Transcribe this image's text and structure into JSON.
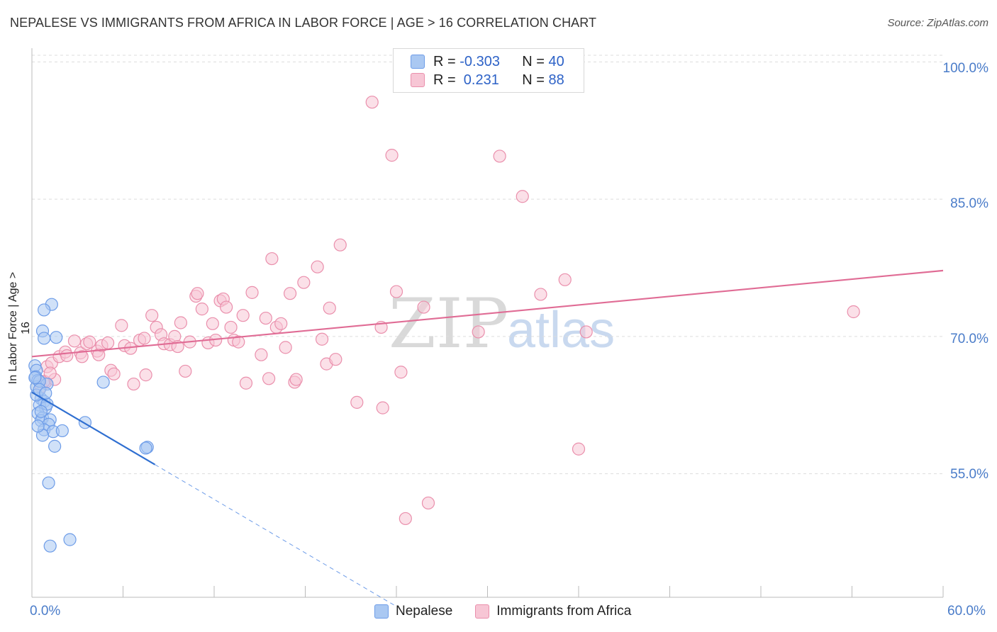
{
  "chart_data": {
    "type": "scatter",
    "title": "NEPALESE VS IMMIGRANTS FROM AFRICA IN LABOR FORCE | AGE > 16 CORRELATION CHART",
    "source": "Source: ZipAtlas.com",
    "watermark": "ZIPatlas",
    "xlabel": "",
    "ylabel": "In Labor Force | Age > 16",
    "xlim": [
      0,
      60
    ],
    "ylim": [
      41.5,
      101.5
    ],
    "x_tick_labels": [
      "0.0%",
      "60.0%"
    ],
    "y_ticks": [
      55,
      70,
      85,
      100
    ],
    "y_tick_labels": [
      "55.0%",
      "70.0%",
      "85.0%",
      "100.0%"
    ],
    "legend": {
      "rows": [
        {
          "r_label": "R = ",
          "r_value": "-0.303",
          "n_label": "N = ",
          "n_value": "40"
        },
        {
          "r_label": "R = ",
          "r_value": " 0.231",
          "n_label": "N = ",
          "n_value": "88"
        }
      ]
    },
    "series": [
      {
        "name": "Nepalese",
        "color": "#6d9ce8",
        "fill": "#aac8f2",
        "trend": {
          "x0": 0.0,
          "y0": 63.9,
          "x1": 8.1,
          "y1": 56.0,
          "dash_to_x": 24.0,
          "dash_to_y": 40.5
        },
        "points": [
          [
            0.2,
            66.8
          ],
          [
            0.3,
            66.3
          ],
          [
            0.25,
            65.6
          ],
          [
            0.4,
            65.2
          ],
          [
            0.3,
            64.5
          ],
          [
            0.6,
            63.2
          ],
          [
            0.8,
            62.9
          ],
          [
            0.5,
            62.5
          ],
          [
            0.9,
            62.2
          ],
          [
            0.4,
            61.6
          ],
          [
            0.7,
            61.1
          ],
          [
            0.6,
            60.8
          ],
          [
            1.2,
            60.9
          ],
          [
            1.1,
            60.4
          ],
          [
            0.8,
            59.8
          ],
          [
            1.4,
            59.6
          ],
          [
            0.7,
            59.2
          ],
          [
            2.0,
            59.7
          ],
          [
            1.5,
            58.0
          ],
          [
            3.5,
            60.6
          ],
          [
            7.6,
            57.9
          ],
          [
            7.5,
            57.8
          ],
          [
            1.3,
            73.5
          ],
          [
            0.8,
            72.9
          ],
          [
            0.7,
            70.6
          ],
          [
            0.8,
            69.8
          ],
          [
            1.6,
            69.9
          ],
          [
            4.7,
            65.0
          ],
          [
            1.0,
            64.8
          ],
          [
            0.5,
            65.1
          ],
          [
            1.1,
            54.0
          ],
          [
            2.5,
            47.8
          ],
          [
            1.2,
            47.1
          ],
          [
            0.3,
            63.6
          ],
          [
            0.5,
            64.2
          ],
          [
            1.0,
            62.6
          ],
          [
            0.6,
            61.8
          ],
          [
            0.2,
            65.5
          ],
          [
            0.9,
            63.8
          ],
          [
            0.4,
            60.2
          ]
        ]
      },
      {
        "name": "Immigrants from Africa",
        "color": "#ea8fac",
        "fill": "#f7c6d5",
        "trend": {
          "x0": 0.0,
          "y0": 67.8,
          "x1": 60.0,
          "y1": 77.2
        },
        "points": [
          [
            0.6,
            64.5
          ],
          [
            0.9,
            65.0
          ],
          [
            1.0,
            66.7
          ],
          [
            1.3,
            67.1
          ],
          [
            1.5,
            65.3
          ],
          [
            1.8,
            67.8
          ],
          [
            2.2,
            68.3
          ],
          [
            2.3,
            67.9
          ],
          [
            2.8,
            69.5
          ],
          [
            3.2,
            68.2
          ],
          [
            3.3,
            67.8
          ],
          [
            3.6,
            69.2
          ],
          [
            3.8,
            69.4
          ],
          [
            4.3,
            68.4
          ],
          [
            4.4,
            68.0
          ],
          [
            4.6,
            69.0
          ],
          [
            5.0,
            69.3
          ],
          [
            5.2,
            66.3
          ],
          [
            5.4,
            65.9
          ],
          [
            5.9,
            71.2
          ],
          [
            6.1,
            69.0
          ],
          [
            6.5,
            68.7
          ],
          [
            6.7,
            64.8
          ],
          [
            7.1,
            69.6
          ],
          [
            7.4,
            69.8
          ],
          [
            7.5,
            65.8
          ],
          [
            7.9,
            72.3
          ],
          [
            8.2,
            71.0
          ],
          [
            8.5,
            70.2
          ],
          [
            8.7,
            69.2
          ],
          [
            9.1,
            69.1
          ],
          [
            9.4,
            70.0
          ],
          [
            9.6,
            68.9
          ],
          [
            9.8,
            71.5
          ],
          [
            10.1,
            66.2
          ],
          [
            10.4,
            69.4
          ],
          [
            10.8,
            74.4
          ],
          [
            10.9,
            74.7
          ],
          [
            11.2,
            73.0
          ],
          [
            11.6,
            69.3
          ],
          [
            11.9,
            71.4
          ],
          [
            12.1,
            69.6
          ],
          [
            12.4,
            73.9
          ],
          [
            12.6,
            74.1
          ],
          [
            12.8,
            73.2
          ],
          [
            13.1,
            71.0
          ],
          [
            13.3,
            69.6
          ],
          [
            13.6,
            69.4
          ],
          [
            13.9,
            72.3
          ],
          [
            14.1,
            64.9
          ],
          [
            14.5,
            74.8
          ],
          [
            15.1,
            68.0
          ],
          [
            15.4,
            72.0
          ],
          [
            15.6,
            65.4
          ],
          [
            15.8,
            78.5
          ],
          [
            16.1,
            71.0
          ],
          [
            16.4,
            71.4
          ],
          [
            16.7,
            68.8
          ],
          [
            17.0,
            74.7
          ],
          [
            17.3,
            65.0
          ],
          [
            17.4,
            65.3
          ],
          [
            17.9,
            75.9
          ],
          [
            18.8,
            77.6
          ],
          [
            19.1,
            69.7
          ],
          [
            19.4,
            67.0
          ],
          [
            19.6,
            73.1
          ],
          [
            20.0,
            67.5
          ],
          [
            20.3,
            80.0
          ],
          [
            21.4,
            62.8
          ],
          [
            22.4,
            95.6
          ],
          [
            23.0,
            71.0
          ],
          [
            23.1,
            62.2
          ],
          [
            23.7,
            89.8
          ],
          [
            24.0,
            74.9
          ],
          [
            24.3,
            66.1
          ],
          [
            24.6,
            50.1
          ],
          [
            25.8,
            73.2
          ],
          [
            26.1,
            51.8
          ],
          [
            29.4,
            70.5
          ],
          [
            30.8,
            89.7
          ],
          [
            32.3,
            85.3
          ],
          [
            33.5,
            74.6
          ],
          [
            35.1,
            76.2
          ],
          [
            36.0,
            57.7
          ],
          [
            36.5,
            70.5
          ],
          [
            54.1,
            72.7
          ],
          [
            0.8,
            65.1
          ],
          [
            1.2,
            66.0
          ]
        ]
      }
    ]
  }
}
